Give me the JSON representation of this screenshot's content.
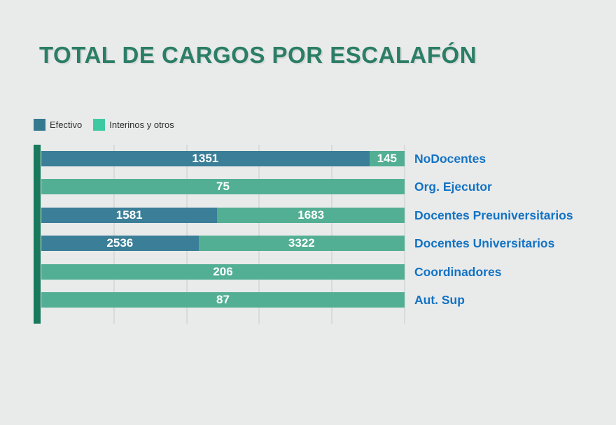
{
  "title": "TOTAL DE CARGOS POR ESCALAFÓN",
  "legend": {
    "position": "top-left",
    "items": [
      {
        "label": "Efectivo",
        "swatch_color": "#35798f"
      },
      {
        "label": "Interinos y otros",
        "swatch_color": "#3ec9a2"
      }
    ]
  },
  "chart_data": {
    "type": "bar",
    "subtype": "horizontal-100pct-stacked",
    "title": "TOTAL DE CARGOS POR ESCALAFÓN",
    "categories": [
      "NoDocentes",
      "Org. Ejecutor",
      "Docentes Preuniversitarios",
      "Docentes Universitarios",
      "Coordinadores",
      "Aut. Sup"
    ],
    "series": [
      {
        "name": "Efectivo",
        "color": "#3a7e97",
        "values": [
          1351,
          0,
          1581,
          2536,
          0,
          0
        ]
      },
      {
        "name": "Interinos y otros",
        "color": "#52af93",
        "values": [
          145,
          75,
          1683,
          3322,
          206,
          87
        ]
      }
    ],
    "value_labels": "shown in white inside each non-zero segment",
    "xlabel": "",
    "ylabel": "",
    "xlim_percent": [
      0,
      100
    ],
    "gridlines": {
      "on": true,
      "every_percent": 20,
      "color": "#d9dada"
    },
    "axis_line_color": "#18795c",
    "legend_position": "top-left"
  },
  "colors": {
    "background": "#e9eaea",
    "title_green": "#2b7e66",
    "bar_dark_teal": "#3a7e97",
    "bar_green": "#52af93",
    "axis_dark_green": "#18795c",
    "category_label_blue": "#1273c4",
    "gridline_gray": "#d9dada"
  }
}
